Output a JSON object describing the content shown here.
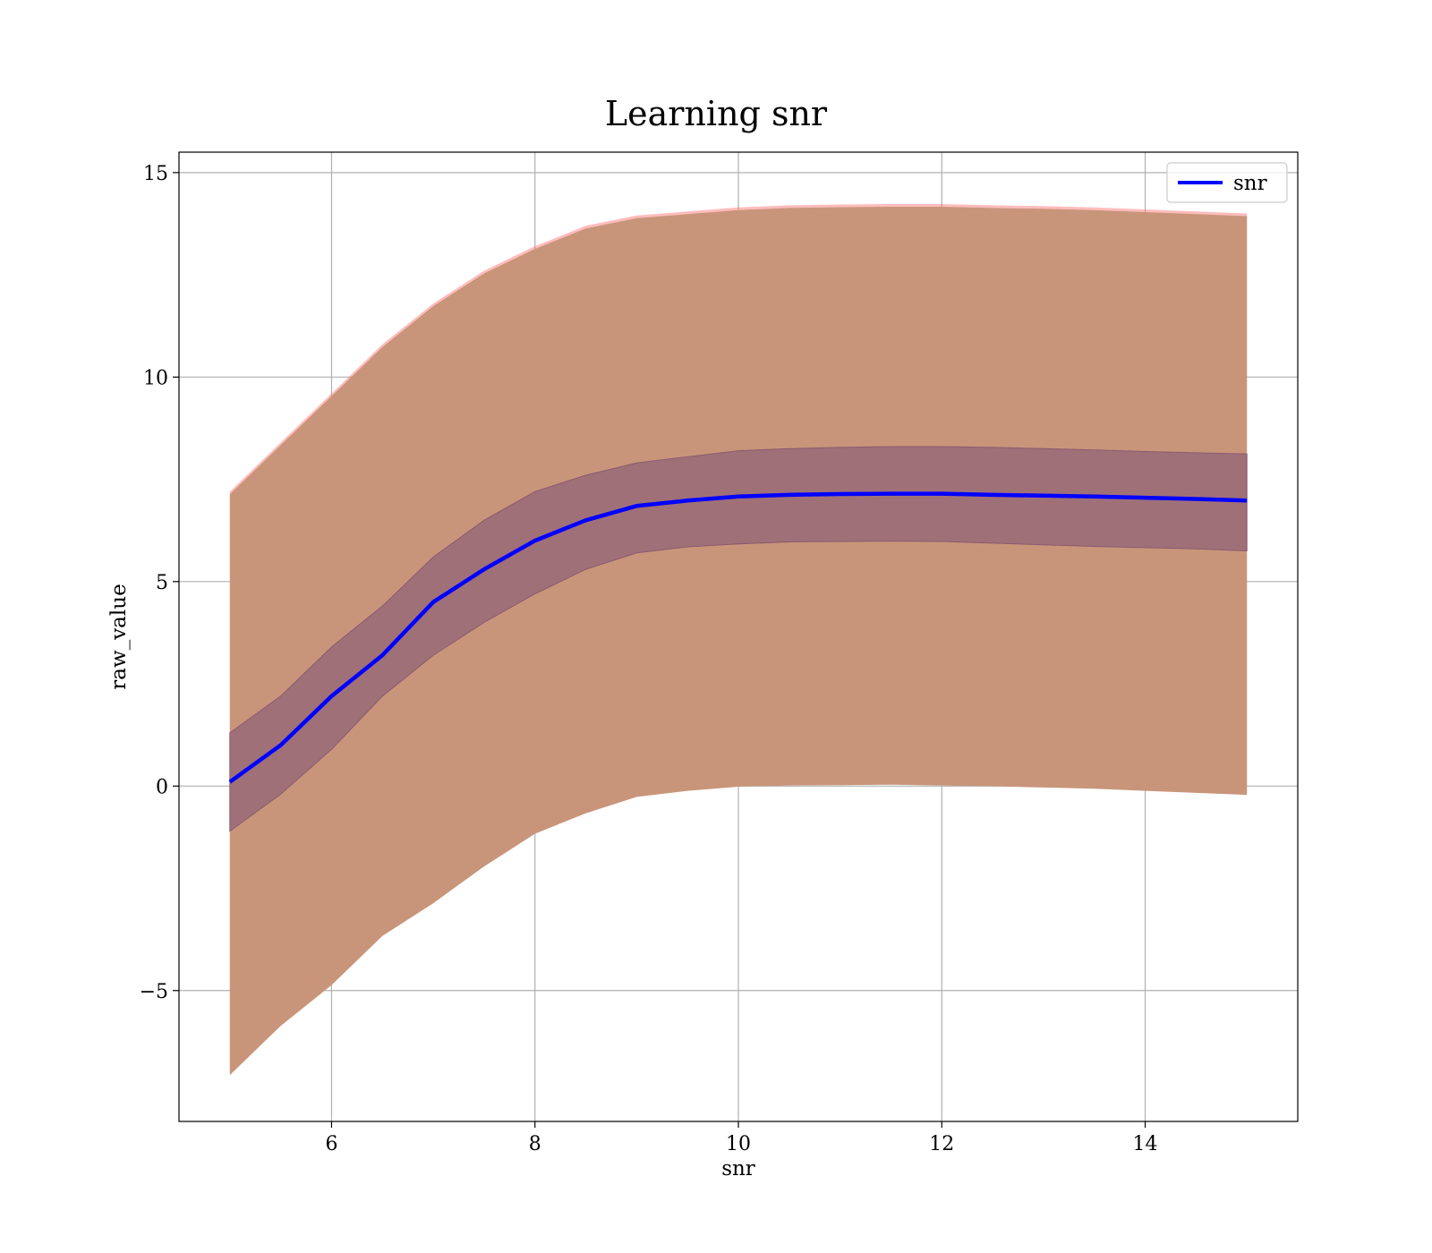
{
  "chart_data": {
    "type": "line",
    "title": "Learning snr",
    "xlabel": "snr",
    "ylabel": "raw_value",
    "xlim": [
      4.5,
      15.5
    ],
    "ylim": [
      -8.2,
      15.5
    ],
    "xticks": [
      6,
      8,
      10,
      12,
      14
    ],
    "yticks": [
      -5,
      0,
      5,
      10,
      15
    ],
    "xtick_labels": [
      "6",
      "8",
      "10",
      "12",
      "14"
    ],
    "ytick_labels": [
      "−5",
      "0",
      "5",
      "10",
      "15"
    ],
    "grid": true,
    "legend": {
      "position": "top-right",
      "entries": [
        "snr"
      ]
    },
    "colors": {
      "line": "#0000ff",
      "outer_band_edge": "#ff6b6b",
      "outer_band": "#c8957a",
      "inner_band": "#a07078"
    },
    "series": [
      {
        "name": "snr",
        "x": [
          5.0,
          5.5,
          6.0,
          6.5,
          7.0,
          7.5,
          8.0,
          8.5,
          9.0,
          9.5,
          10.0,
          10.5,
          11.0,
          11.5,
          12.0,
          12.5,
          13.0,
          13.5,
          14.0,
          14.5,
          15.0
        ],
        "y": [
          0.1,
          1.0,
          2.2,
          3.2,
          4.5,
          5.3,
          6.0,
          6.5,
          6.85,
          6.98,
          7.08,
          7.12,
          7.14,
          7.15,
          7.15,
          7.12,
          7.1,
          7.08,
          7.05,
          7.02,
          6.98
        ],
        "inner_lower": [
          -1.1,
          -0.2,
          0.9,
          2.2,
          3.2,
          4.0,
          4.7,
          5.3,
          5.7,
          5.85,
          5.92,
          5.97,
          5.98,
          5.99,
          5.98,
          5.94,
          5.9,
          5.86,
          5.83,
          5.8,
          5.75
        ],
        "inner_upper": [
          1.3,
          2.2,
          3.4,
          4.4,
          5.6,
          6.5,
          7.2,
          7.6,
          7.9,
          8.05,
          8.2,
          8.25,
          8.28,
          8.3,
          8.3,
          8.28,
          8.25,
          8.22,
          8.18,
          8.15,
          8.12
        ],
        "outer_lower": [
          -7.0,
          -5.8,
          -4.8,
          -3.6,
          -2.8,
          -1.9,
          -1.1,
          -0.6,
          -0.2,
          -0.05,
          0.05,
          0.08,
          0.09,
          0.1,
          0.08,
          0.06,
          0.03,
          0.0,
          -0.05,
          -0.1,
          -0.15
        ],
        "outer_upper": [
          7.2,
          8.4,
          9.6,
          10.8,
          11.8,
          12.6,
          13.2,
          13.7,
          13.95,
          14.05,
          14.15,
          14.2,
          14.22,
          14.23,
          14.23,
          14.2,
          14.18,
          14.15,
          14.1,
          14.05,
          14.0
        ]
      }
    ]
  }
}
